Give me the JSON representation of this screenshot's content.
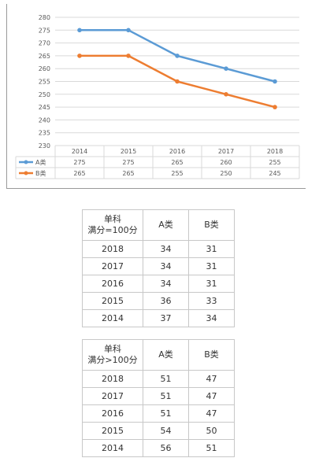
{
  "chart_data": {
    "type": "line",
    "categories": [
      "2014",
      "2015",
      "2016",
      "2017",
      "2018"
    ],
    "series": [
      {
        "name": "A类",
        "color": "#5b9bd5",
        "values": [
          275,
          275,
          265,
          260,
          255
        ]
      },
      {
        "name": "B类",
        "color": "#ed7d31",
        "values": [
          265,
          265,
          255,
          250,
          245
        ]
      }
    ],
    "yticks": [
      "280",
      "275",
      "270",
      "265",
      "260",
      "255",
      "250",
      "245",
      "240",
      "235",
      "230"
    ],
    "ylim": [
      230,
      280
    ],
    "grid": true,
    "legend": "data-table-bottom"
  },
  "table1": {
    "header": {
      "line1": "单科",
      "line2": "满分=100分",
      "a": "A类",
      "b": "B类"
    },
    "rows": [
      {
        "year": "2018",
        "a": "34",
        "b": "31"
      },
      {
        "year": "2017",
        "a": "34",
        "b": "31"
      },
      {
        "year": "2016",
        "a": "34",
        "b": "31"
      },
      {
        "year": "2015",
        "a": "36",
        "b": "33"
      },
      {
        "year": "2014",
        "a": "37",
        "b": "34"
      }
    ]
  },
  "table2": {
    "header": {
      "line1": "单科",
      "line2": "满分>100分",
      "a": "A类",
      "b": "B类"
    },
    "rows": [
      {
        "year": "2018",
        "a": "51",
        "b": "47"
      },
      {
        "year": "2017",
        "a": "51",
        "b": "47"
      },
      {
        "year": "2016",
        "a": "51",
        "b": "47"
      },
      {
        "year": "2015",
        "a": "54",
        "b": "50"
      },
      {
        "year": "2014",
        "a": "56",
        "b": "51"
      }
    ]
  }
}
